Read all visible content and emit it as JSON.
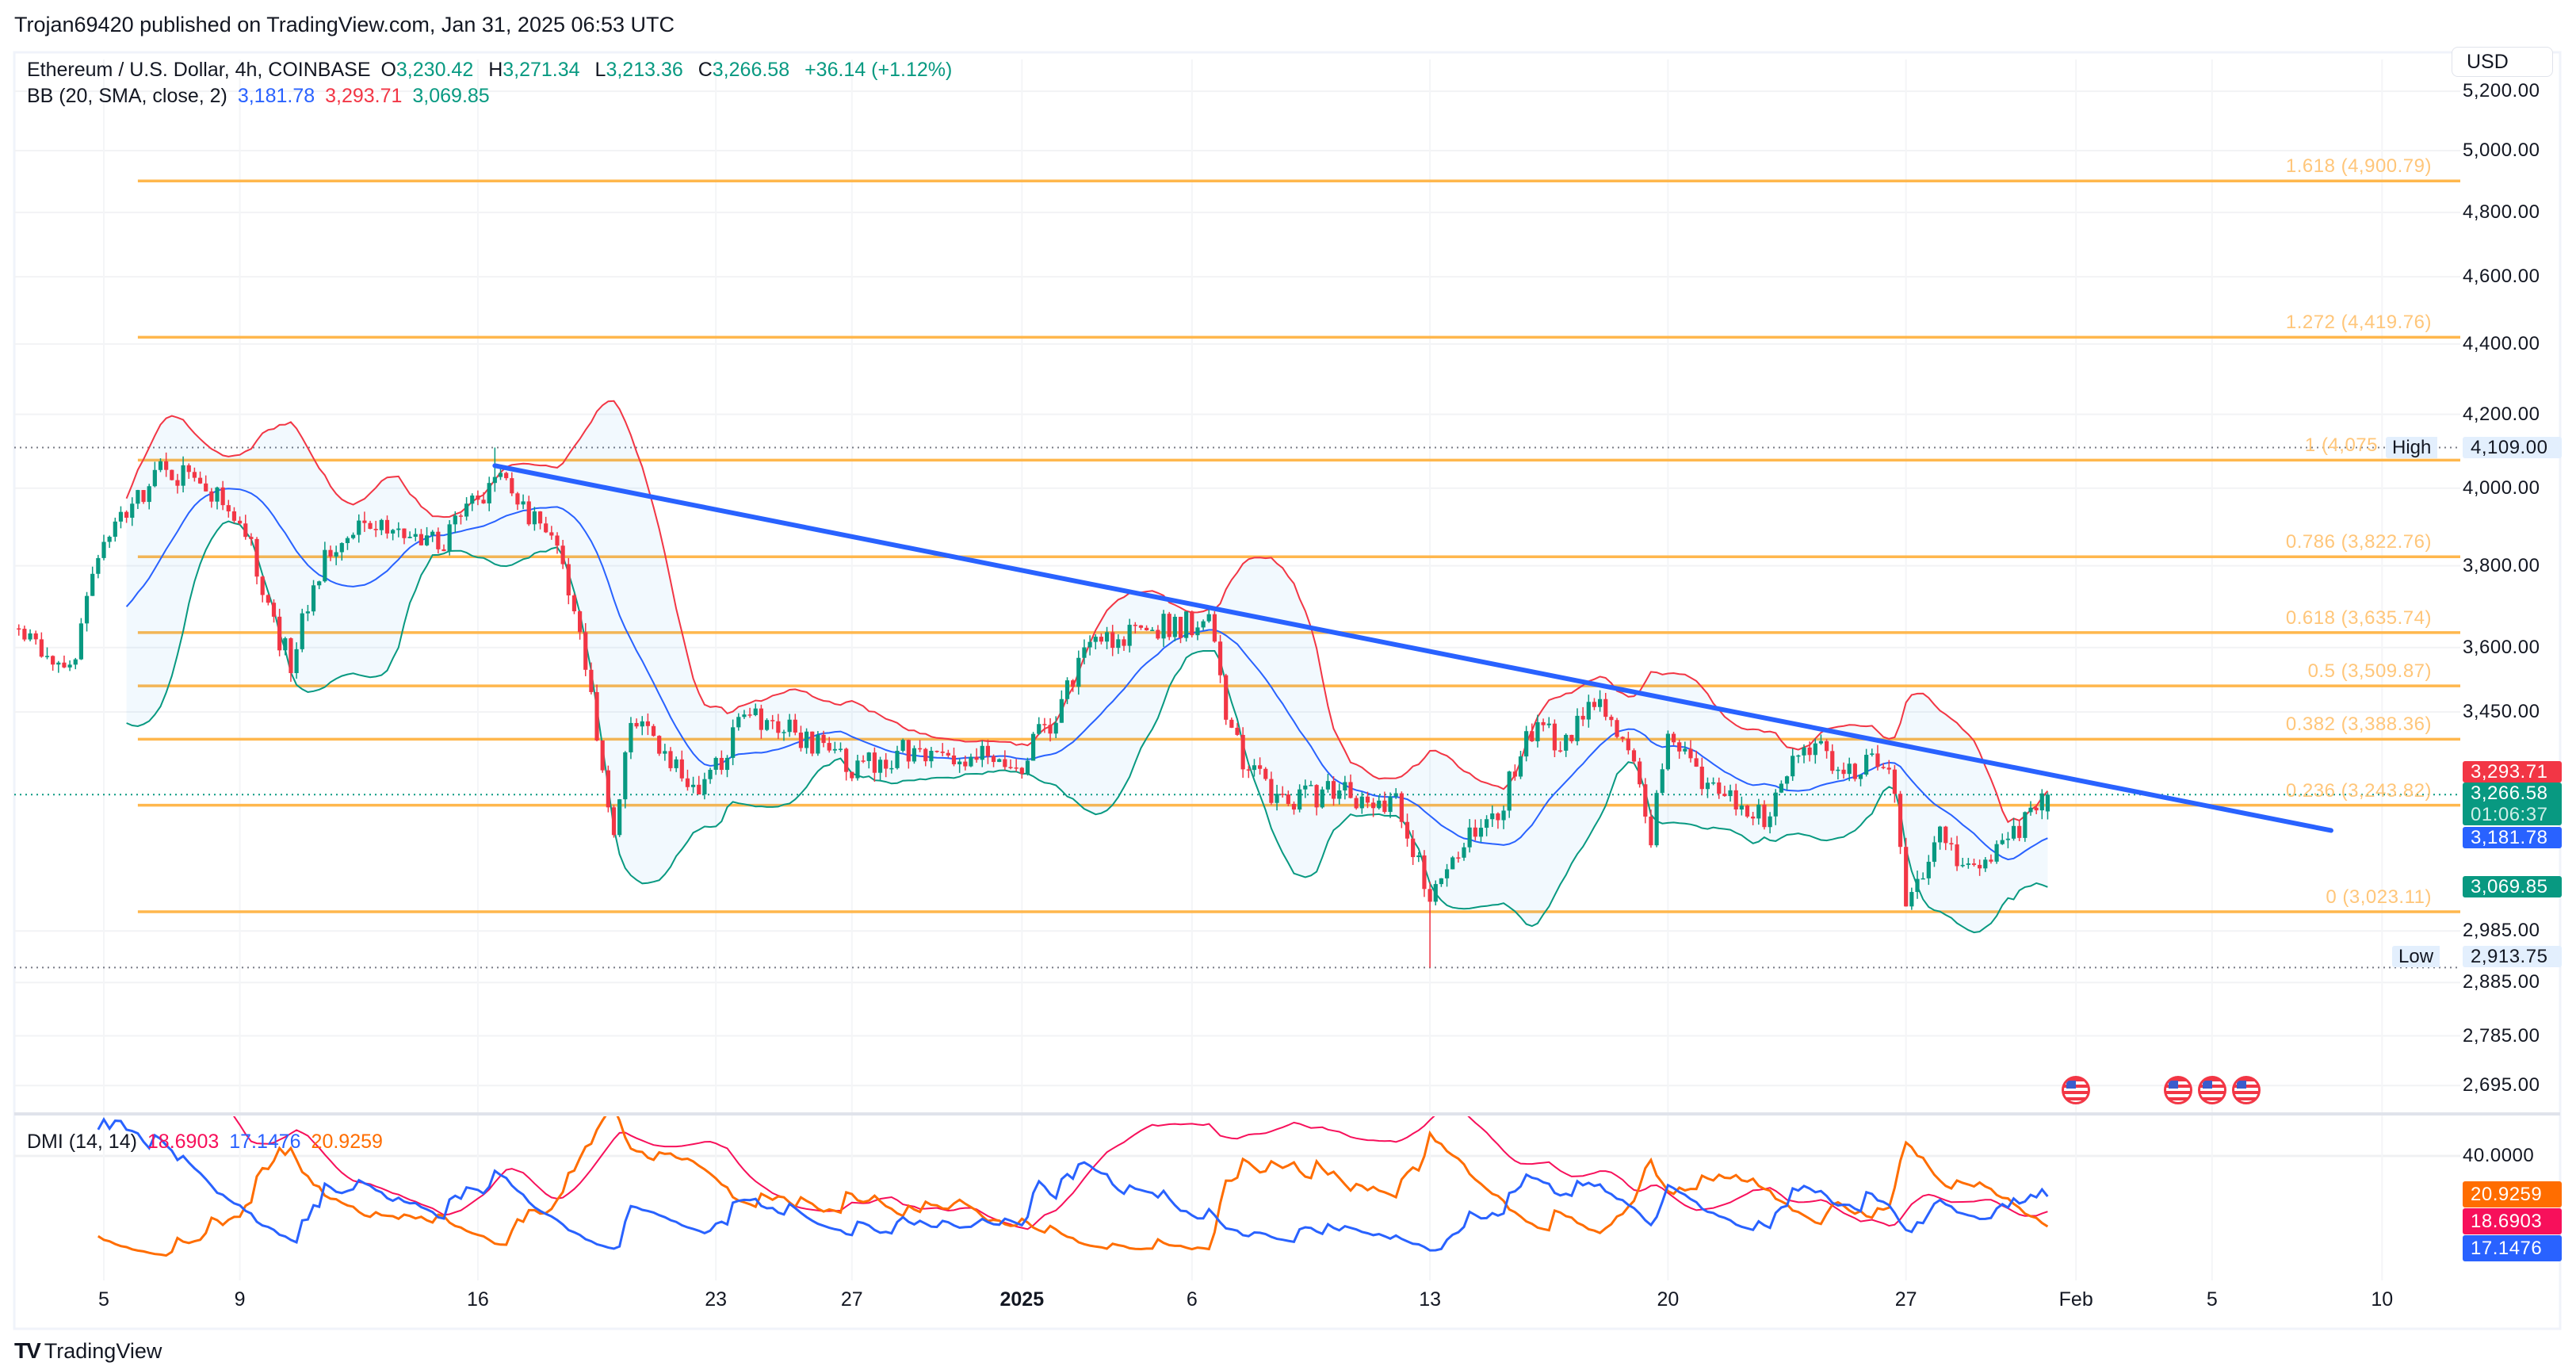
{
  "header": {
    "published": "Trojan69420 published on TradingView.com, Jan 31, 2025 06:53 UTC"
  },
  "legend": {
    "symbol": "Ethereum / U.S. Dollar, 4h, COINBASE",
    "o_label": "O",
    "o": "3,230.42",
    "h_label": "H",
    "h": "3,271.34",
    "l_label": "L",
    "l": "3,213.36",
    "c_label": "C",
    "c": "3,266.58",
    "change": "+36.14 (+1.12%)",
    "bb_name": "BB (20, SMA, close, 2)",
    "bb_basis": "3,181.78",
    "bb_upper": "3,293.71",
    "bb_lower": "3,069.85"
  },
  "currency": "USD",
  "dmi_legend": {
    "name": "DMI (14, 14)",
    "adx": "18.6903",
    "plus_di": "17.1476",
    "minus_di": "20.9259"
  },
  "price_labels": {
    "high_tag": "High",
    "high": "4,109.00",
    "low_tag": "Low",
    "low": "2,913.75",
    "bb_upper": "3,293.71",
    "last": "3,266.58",
    "countdown": "01:06:37",
    "bb_basis": "3,181.78",
    "bb_lower": "3,069.85"
  },
  "dmi_axis": {
    "tick": "40.0000",
    "minus_di": "20.9259",
    "adx": "18.6903",
    "plus_di": "17.1476"
  },
  "footer": {
    "brand": "TradingView",
    "logo": "TV"
  },
  "colors": {
    "up": "#089981",
    "down": "#F23645",
    "bb_basis": "#2962FF",
    "bb_upper": "#F23645",
    "bb_lower": "#089981",
    "fib": "#FFB74D",
    "trendline": "#2962FF",
    "adx": "#F7105B",
    "plus_di": "#2962FF",
    "minus_di": "#FF6D00"
  },
  "event_icons": [
    "us-flag-icon",
    "us-flag-icon",
    "us-flag-icon",
    "us-flag-icon"
  ],
  "chart_data": {
    "type": "candlestick",
    "symbol": "Ethereum / U.S. Dollar",
    "interval": "4h",
    "y_scale": "log",
    "grid": true,
    "price_ticks": [
      {
        "value": 5200,
        "label": "5,200.00"
      },
      {
        "value": 5000,
        "label": "5,000.00"
      },
      {
        "value": 4800,
        "label": "4,800.00"
      },
      {
        "value": 4600,
        "label": "4,600.00"
      },
      {
        "value": 4400,
        "label": "4,400.00"
      },
      {
        "value": 4200,
        "label": "4,200.00"
      },
      {
        "value": 4000,
        "label": "4,000.00"
      },
      {
        "value": 3800,
        "label": "3,800.00"
      },
      {
        "value": 3600,
        "label": "3,600.00"
      },
      {
        "value": 3450,
        "label": "3,450.00"
      },
      {
        "value": 2985,
        "label": "2,985.00"
      },
      {
        "value": 2885,
        "label": "2,885.00"
      },
      {
        "value": 2785,
        "label": "2,785.00"
      },
      {
        "value": 2695,
        "label": "2,695.00"
      }
    ],
    "time_ticks": [
      {
        "label": "5",
        "date": "2024-12-05"
      },
      {
        "label": "9",
        "date": "2024-12-09"
      },
      {
        "label": "16",
        "date": "2024-12-16"
      },
      {
        "label": "23",
        "date": "2024-12-23"
      },
      {
        "label": "27",
        "date": "2024-12-27"
      },
      {
        "label": "2025",
        "date": "2025-01-01",
        "bold": true
      },
      {
        "label": "6",
        "date": "2025-01-06"
      },
      {
        "label": "13",
        "date": "2025-01-13"
      },
      {
        "label": "20",
        "date": "2025-01-20"
      },
      {
        "label": "27",
        "date": "2025-01-27"
      },
      {
        "label": "Feb",
        "date": "2025-02-01"
      },
      {
        "label": "5",
        "date": "2025-02-05"
      },
      {
        "label": "10",
        "date": "2025-02-10"
      }
    ],
    "price_path": [
      [
        "2024-12-02T12:00",
        3646
      ],
      [
        "2024-12-04T00:00",
        3550
      ],
      [
        "2024-12-05T00:00",
        3850
      ],
      [
        "2024-12-06T16:00",
        4050
      ],
      [
        "2024-12-08T00:00",
        4000
      ],
      [
        "2024-12-09T00:00",
        3940
      ],
      [
        "2024-12-10T00:00",
        3650
      ],
      [
        "2024-12-10T12:00",
        3570
      ],
      [
        "2024-12-11T12:00",
        3810
      ],
      [
        "2024-12-12T12:00",
        3900
      ],
      [
        "2024-12-15T00:00",
        3870
      ],
      [
        "2024-12-16T12:00",
        4020
      ],
      [
        "2024-12-17T12:00",
        3940
      ],
      [
        "2024-12-18T12:00",
        3810
      ],
      [
        "2024-12-19T00:00",
        3650
      ],
      [
        "2024-12-20T00:00",
        3170
      ],
      [
        "2024-12-20T12:00",
        3450
      ],
      [
        "2024-12-21T12:00",
        3340
      ],
      [
        "2024-12-22T12:00",
        3270
      ],
      [
        "2024-12-24T00:00",
        3450
      ],
      [
        "2024-12-26T00:00",
        3370
      ],
      [
        "2024-12-27T00:00",
        3330
      ],
      [
        "2024-12-29T00:00",
        3370
      ],
      [
        "2024-12-31T00:00",
        3350
      ],
      [
        "2025-01-01T00:00",
        3340
      ],
      [
        "2025-01-02T00:00",
        3450
      ],
      [
        "2025-01-03T00:00",
        3600
      ],
      [
        "2025-01-05T00:00",
        3650
      ],
      [
        "2025-01-06T12:00",
        3660
      ],
      [
        "2025-01-07T00:00",
        3450
      ],
      [
        "2025-01-07T12:00",
        3340
      ],
      [
        "2025-01-08T12:00",
        3250
      ],
      [
        "2025-01-10T00:00",
        3270
      ],
      [
        "2025-01-12T00:00",
        3250
      ],
      [
        "2025-01-13T00:00",
        3045
      ],
      [
        "2025-01-14T00:00",
        3180
      ],
      [
        "2025-01-15T00:00",
        3230
      ],
      [
        "2025-01-16T00:00",
        3410
      ],
      [
        "2025-01-17T00:00",
        3380
      ],
      [
        "2025-01-18T00:00",
        3490
      ],
      [
        "2025-01-19T00:00",
        3340
      ],
      [
        "2025-01-19T12:00",
        3170
      ],
      [
        "2025-01-20T00:00",
        3410
      ],
      [
        "2025-01-21T00:00",
        3290
      ],
      [
        "2025-01-23T00:00",
        3220
      ],
      [
        "2025-01-24T00:00",
        3390
      ],
      [
        "2025-01-25T00:00",
        3330
      ],
      [
        "2025-01-26T12:00",
        3330
      ],
      [
        "2025-01-27T00:00",
        3060
      ],
      [
        "2025-01-28T00:00",
        3170
      ],
      [
        "2025-01-29T00:00",
        3100
      ],
      [
        "2025-01-29T12:00",
        3130
      ],
      [
        "2025-01-31T04:00",
        3266.58
      ]
    ],
    "period_high": {
      "date": "2024-12-16T12:00",
      "value": 4109.0
    },
    "period_low": {
      "date": "2025-01-13T00:00",
      "value": 2913.75
    },
    "last_bar": {
      "date": "2025-01-31T04:00",
      "open": 3230.42,
      "high": 3271.34,
      "low": 3213.36,
      "close": 3266.58
    },
    "fib_levels": [
      {
        "label": "1.618 (4,900.79)",
        "value": 4900.79
      },
      {
        "label": "1.272 (4,419.76)",
        "value": 4419.76
      },
      {
        "label": "1 (4,075",
        "value": 4075
      },
      {
        "label": "0.786 (3,822.76)",
        "value": 3822.76
      },
      {
        "label": "0.618 (3,635.74)",
        "value": 3635.74
      },
      {
        "label": "0.5 (3,509.87)",
        "value": 3509.87
      },
      {
        "label": "0.382 (3,388.36)",
        "value": 3388.36
      },
      {
        "label": "0.236 (3,243.82)",
        "value": 3243.82
      },
      {
        "label": "0 (3,023.11)",
        "value": 3023.11
      }
    ],
    "fib_start_date": "2024-12-06T00:00",
    "trendline": [
      [
        "2024-12-16T12:00",
        4060
      ],
      [
        "2025-02-08T12:00",
        3190
      ]
    ],
    "event_dates": [
      "2025-02-01",
      "2025-02-04",
      "2025-02-05",
      "2025-02-06"
    ],
    "bollinger": {
      "length": 20,
      "mult": 2
    },
    "dmi": {
      "di_length": 14,
      "adx_smoothing": 14,
      "axis_tick": 40
    }
  }
}
